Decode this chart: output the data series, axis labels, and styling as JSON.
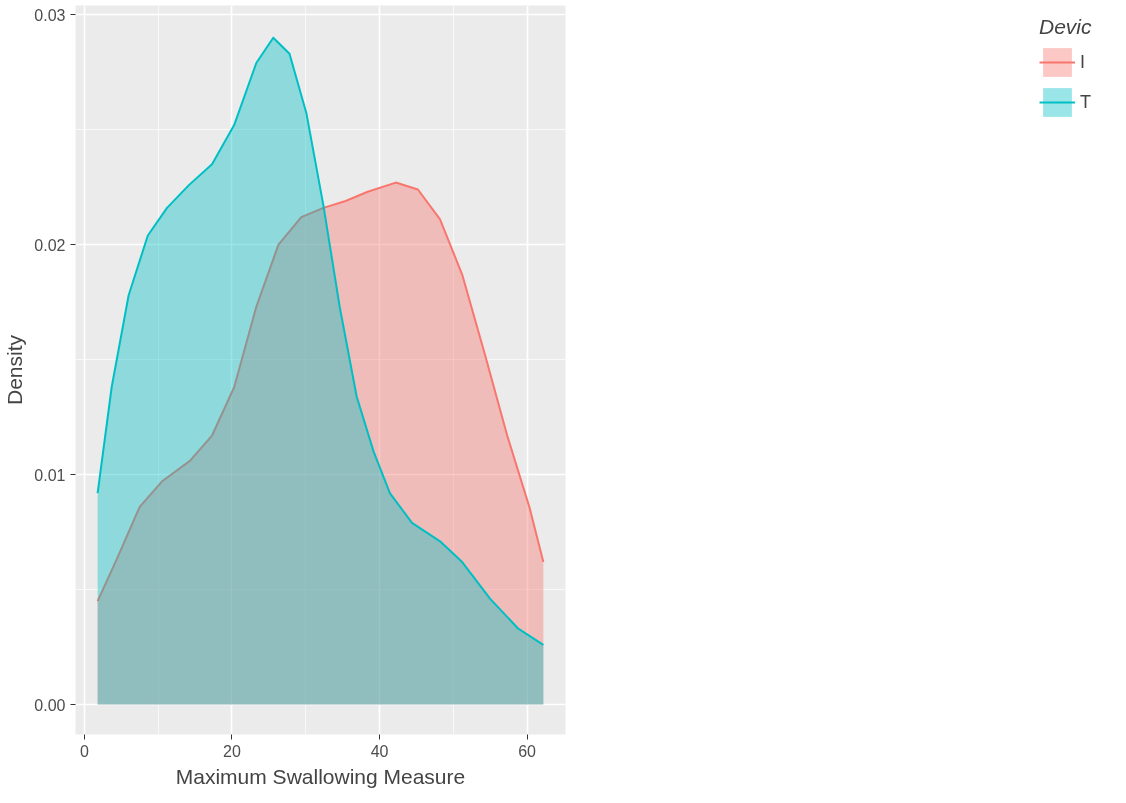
{
  "chart_data": {
    "type": "area",
    "xlabel": "Maximum Swallowing Measure",
    "ylabel": "Density",
    "legend_title": "Devic",
    "series": [
      {
        "name": "I",
        "color": "#f8766d",
        "x": [
          1.8,
          4.5,
          7.5,
          10.5,
          14.3,
          17.3,
          20.3,
          23.3,
          26.3,
          29.4,
          32.4,
          35.4,
          38.4,
          42.2,
          45.2,
          48.2,
          51.2,
          54.3,
          57.3,
          60.3,
          62.2
        ],
        "values": [
          0.0045,
          0.0064,
          0.0086,
          0.0097,
          0.0106,
          0.0117,
          0.0138,
          0.0173,
          0.02,
          0.0212,
          0.0216,
          0.0219,
          0.0223,
          0.0227,
          0.0224,
          0.0211,
          0.0187,
          0.0152,
          0.0117,
          0.0086,
          0.0062
        ]
      },
      {
        "name": "T",
        "color": "#00bfc4",
        "x": [
          1.8,
          3.7,
          6.0,
          8.6,
          11.2,
          14.2,
          17.3,
          20.3,
          23.3,
          25.6,
          27.8,
          30.1,
          32.4,
          34.6,
          36.9,
          39.2,
          41.4,
          44.4,
          48.2,
          51.2,
          55.0,
          58.8,
          62.2
        ],
        "values": [
          0.0092,
          0.0138,
          0.0178,
          0.0204,
          0.0216,
          0.0226,
          0.0235,
          0.0252,
          0.0279,
          0.029,
          0.0283,
          0.0257,
          0.0217,
          0.0173,
          0.0134,
          0.011,
          0.0092,
          0.0079,
          0.0071,
          0.0062,
          0.0046,
          0.0033,
          0.0026
        ]
      }
    ],
    "xlim": [
      -1.2,
      65.2
    ],
    "xticks": [
      0,
      20,
      40,
      60
    ],
    "ylim": [
      -0.0013,
      0.0304
    ],
    "yticks": [
      {
        "value": 0,
        "label": "0.00"
      },
      {
        "value": 0.01,
        "label": "0.01"
      },
      {
        "value": 0.02,
        "label": "0.02"
      },
      {
        "value": 0.03,
        "label": "0.03"
      }
    ],
    "grid": true,
    "legend": "right"
  }
}
